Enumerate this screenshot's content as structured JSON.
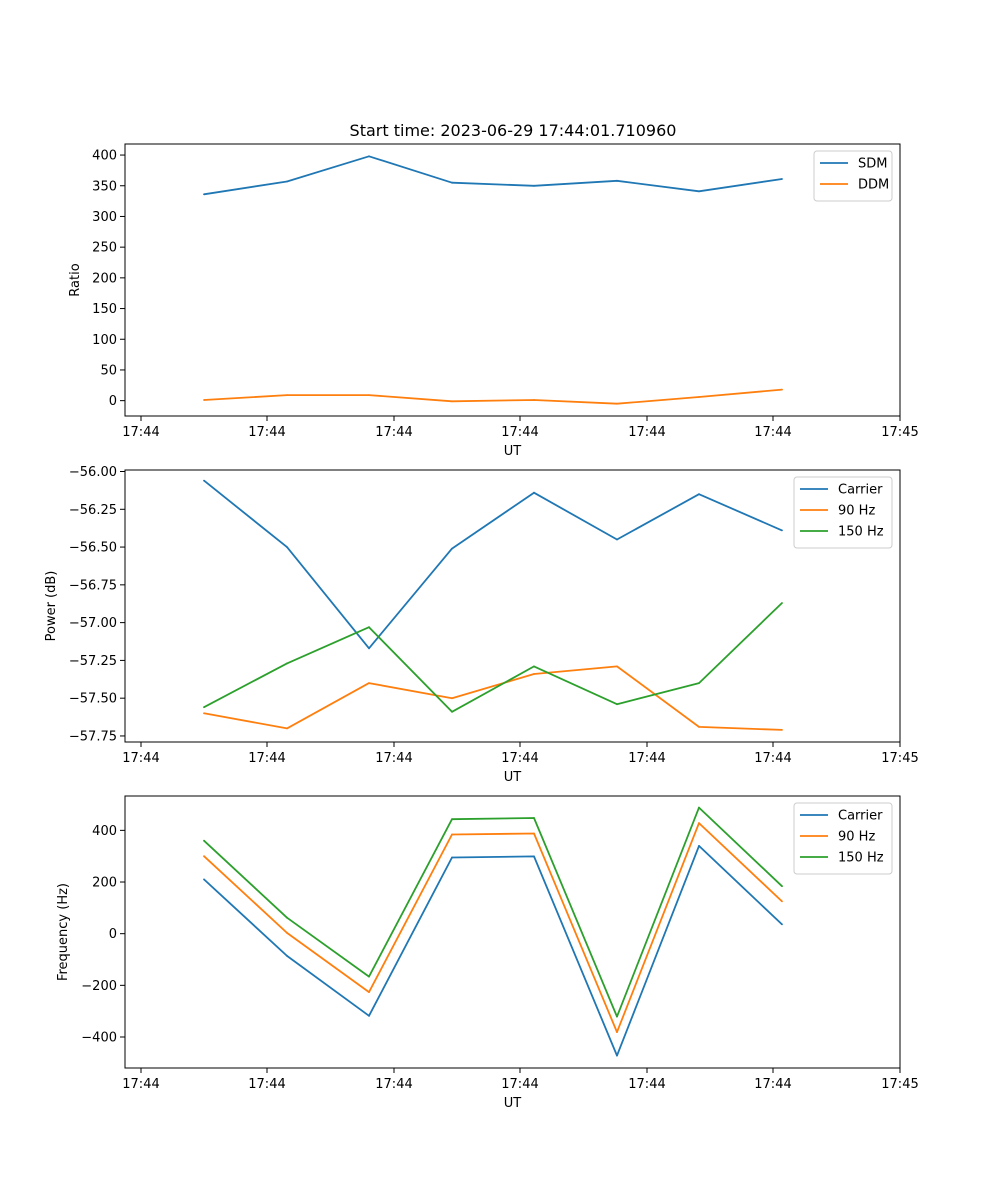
{
  "title": "Start time: 2023-06-29 17:44:01.710960",
  "chart_data": [
    {
      "type": "line",
      "title": "Start time: 2023-06-29 17:44:01.710960",
      "xlabel": "UT",
      "ylabel": "Ratio",
      "x_tick_labels": [
        "17:44",
        "17:44",
        "17:44",
        "17:44",
        "17:44",
        "17:44",
        "17:45"
      ],
      "y_ticks": [
        0,
        50,
        100,
        150,
        200,
        250,
        300,
        350,
        400
      ],
      "y_tick_labels": [
        "0",
        "50",
        "100",
        "150",
        "200",
        "250",
        "300",
        "350",
        "400"
      ],
      "ylim": [
        -25,
        418
      ],
      "legend_position": "top-right",
      "series": [
        {
          "name": "SDM",
          "color": "#1f77b4",
          "values": [
            336,
            357,
            398,
            355,
            350,
            358,
            341,
            361
          ]
        },
        {
          "name": "DDM",
          "color": "#ff7f0e",
          "values": [
            1,
            9,
            9,
            -1,
            1,
            -5,
            6,
            18
          ]
        }
      ]
    },
    {
      "type": "line",
      "title": "",
      "xlabel": "UT",
      "ylabel": "Power (dB)",
      "x_tick_labels": [
        "17:44",
        "17:44",
        "17:44",
        "17:44",
        "17:44",
        "17:44",
        "17:45"
      ],
      "y_ticks": [
        -57.75,
        -57.5,
        -57.25,
        -57.0,
        -56.75,
        -56.5,
        -56.25,
        -56.0
      ],
      "y_tick_labels": [
        "−57.75",
        "−57.50",
        "−57.25",
        "−57.00",
        "−56.75",
        "−56.50",
        "−56.25",
        "−56.00"
      ],
      "ylim": [
        -57.79,
        -55.99
      ],
      "legend_position": "top-right",
      "series": [
        {
          "name": "Carrier",
          "color": "#1f77b4",
          "values": [
            -56.06,
            -56.5,
            -57.17,
            -56.51,
            -56.14,
            -56.45,
            -56.15,
            -56.39
          ]
        },
        {
          "name": "90 Hz",
          "color": "#ff7f0e",
          "values": [
            -57.6,
            -57.7,
            -57.4,
            -57.5,
            -57.34,
            -57.29,
            -57.69,
            -57.71
          ]
        },
        {
          "name": "150 Hz",
          "color": "#2ca02c",
          "values": [
            -57.56,
            -57.27,
            -57.03,
            -57.59,
            -57.29,
            -57.54,
            -57.4,
            -56.87
          ]
        }
      ]
    },
    {
      "type": "line",
      "title": "",
      "xlabel": "UT",
      "ylabel": "Frequency (Hz)",
      "x_tick_labels": [
        "17:44",
        "17:44",
        "17:44",
        "17:44",
        "17:44",
        "17:44",
        "17:45"
      ],
      "y_ticks": [
        -400,
        -200,
        0,
        200,
        400
      ],
      "y_tick_labels": [
        "−400",
        "−200",
        "0",
        "200",
        "400"
      ],
      "ylim": [
        -520,
        533
      ],
      "legend_position": "top-right",
      "series": [
        {
          "name": "Carrier",
          "color": "#1f77b4",
          "values": [
            210,
            -86,
            -318,
            295,
            299,
            -472,
            340,
            36
          ]
        },
        {
          "name": "90 Hz",
          "color": "#ff7f0e",
          "values": [
            300,
            3,
            -226,
            384,
            388,
            -381,
            428,
            125
          ]
        },
        {
          "name": "150 Hz",
          "color": "#2ca02c",
          "values": [
            360,
            62,
            -166,
            443,
            448,
            -321,
            488,
            184
          ]
        }
      ]
    }
  ]
}
